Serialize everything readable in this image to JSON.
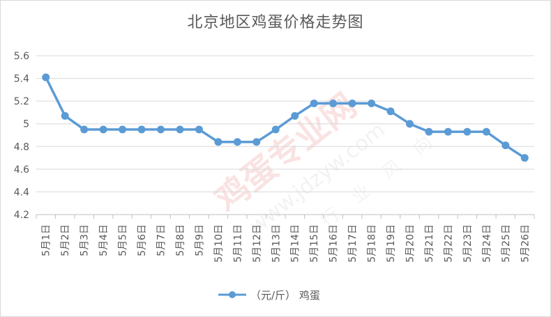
{
  "chart_data": {
    "type": "line",
    "title": "北京地区鸡蛋价格走势图",
    "categories": [
      "5月1日",
      "5月2日",
      "5月3日",
      "5月4日",
      "5月5日",
      "5月6日",
      "5月7日",
      "5月8日",
      "5月9日",
      "5月10日",
      "5月11日",
      "5月12日",
      "5月13日",
      "5月14日",
      "5月15日",
      "5月16日",
      "5月17日",
      "5月18日",
      "5月19日",
      "5月20日",
      "5月21日",
      "5月22日",
      "5月23日",
      "5月24日",
      "5月25日",
      "5月26日"
    ],
    "series": [
      {
        "name": "（元/斤） 鸡蛋",
        "values": [
          5.41,
          5.07,
          4.95,
          4.95,
          4.95,
          4.95,
          4.95,
          4.95,
          4.95,
          4.84,
          4.84,
          4.84,
          4.95,
          5.07,
          5.18,
          5.18,
          5.18,
          5.18,
          5.11,
          5.0,
          4.93,
          4.93,
          4.93,
          4.93,
          4.81,
          4.7
        ]
      }
    ],
    "yticks": [
      "4.2",
      "4.4",
      "4.6",
      "4.8",
      "5",
      "5.2",
      "5.4",
      "5.6"
    ],
    "ylim": [
      4.2,
      5.6
    ],
    "grid": true,
    "legend_position": "bottom",
    "line_color": "#5b9bd5",
    "watermark": [
      "鸡蛋专业网",
      "www.jdzyw.com",
      "行业风向"
    ]
  }
}
